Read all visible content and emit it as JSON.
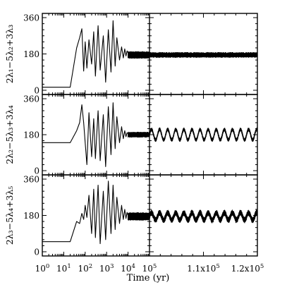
{
  "chart_data": {
    "type": "line",
    "xlabel": "Time (yr)",
    "left_x": {
      "scale": "log",
      "xlim": [
        1,
        100000
      ],
      "ticks": [
        1,
        10,
        100,
        1000,
        10000,
        100000
      ],
      "tick_labels": [
        {
          "base": "10",
          "exp": "0"
        },
        {
          "base": "10",
          "exp": "1"
        },
        {
          "base": "10",
          "exp": "2"
        },
        {
          "base": "10",
          "exp": "3"
        },
        {
          "base": "10",
          "exp": "4"
        },
        {
          "base": "10",
          "exp": "5"
        }
      ]
    },
    "right_x": {
      "scale": "linear",
      "xlim": [
        100000,
        120000
      ],
      "ticks": [
        110000,
        120000
      ],
      "tick_labels": [
        {
          "base": "1.1x10",
          "exp": "5"
        },
        {
          "base": "1.2x10",
          "exp": "5"
        }
      ]
    },
    "ylim": [
      0,
      360
    ],
    "yticks": [
      0,
      180,
      360
    ],
    "ytick_labels": [
      "0",
      "180",
      "360"
    ],
    "panels": [
      {
        "ylabel": "2λ₁−5λ₂+3λ₃",
        "early": {
          "x": [
            1,
            20,
            40,
            55,
            70,
            85,
            100,
            120,
            150,
            200,
            250,
            300,
            400,
            500,
            700,
            900,
            1200,
            1600,
            2000,
            2500,
            3000,
            4000,
            5000,
            6000,
            7000,
            8000,
            9000,
            10000
          ],
          "y": [
            15,
            15,
            210,
            260,
            305,
            95,
            240,
            110,
            250,
            130,
            290,
            70,
            320,
            100,
            270,
            40,
            300,
            90,
            345,
            120,
            260,
            150,
            215,
            160,
            205,
            170,
            195,
            185
          ]
        },
        "late": {
          "center": 175,
          "amplitude": 14,
          "modulation_amplitude": 0,
          "modulation_period": 0
        }
      },
      {
        "ylabel": "2λ₂−5λ₃+3λ₄",
        "early": {
          "x": [
            1,
            20,
            40,
            55,
            70,
            85,
            100,
            120,
            150,
            200,
            250,
            300,
            400,
            500,
            700,
            900,
            1200,
            1600,
            2000,
            2500,
            3000,
            4000,
            5000,
            6000,
            7000,
            8000,
            9000,
            10000
          ],
          "y": [
            140,
            140,
            200,
            240,
            330,
            240,
            140,
            30,
            290,
            70,
            260,
            60,
            300,
            50,
            280,
            20,
            320,
            80,
            340,
            110,
            270,
            140,
            220,
            160,
            200,
            170,
            190,
            185
          ]
        },
        "late": {
          "center": 180,
          "amplitude": 10,
          "modulation_amplitude": 26,
          "modulation_period": 1500
        }
      },
      {
        "ylabel": "2λ₃−5λ₄+3λ₅",
        "early": {
          "x": [
            1,
            20,
            40,
            55,
            70,
            85,
            100,
            120,
            150,
            200,
            250,
            300,
            400,
            500,
            700,
            900,
            1200,
            1600,
            2000,
            2500,
            3000,
            4000,
            5000,
            6000,
            7000,
            8000,
            9000,
            10000
          ],
          "y": [
            50,
            50,
            150,
            140,
            190,
            160,
            230,
            170,
            280,
            90,
            310,
            70,
            330,
            40,
            300,
            60,
            350,
            90,
            330,
            110,
            270,
            140,
            230,
            160,
            210,
            165,
            195,
            180
          ]
        },
        "late": {
          "center": 175,
          "amplitude": 16,
          "modulation_amplitude": 18,
          "modulation_period": 1500
        }
      }
    ]
  }
}
